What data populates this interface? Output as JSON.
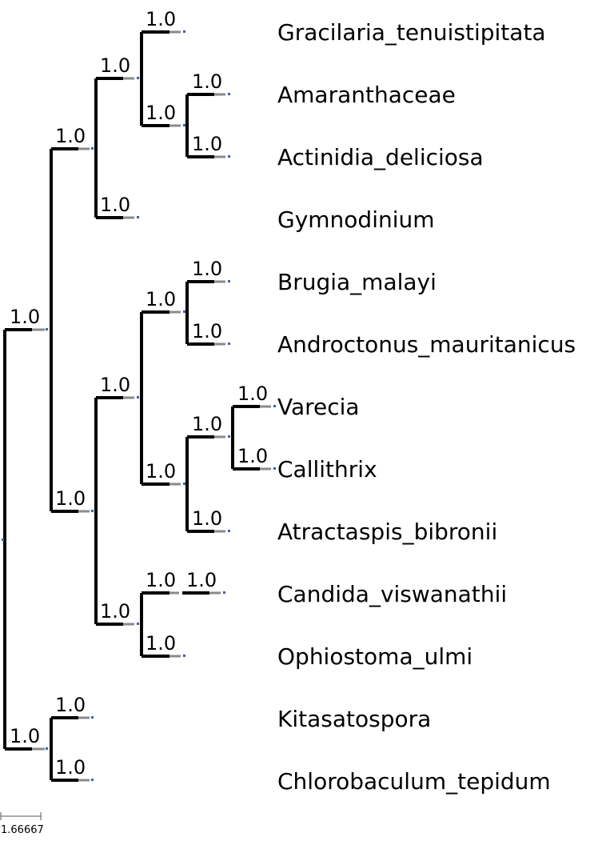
{
  "tree": {
    "leaves": [
      "Gracilaria_tenuistipitata",
      "Amaranthaceae",
      "Actinidia_deliciosa",
      "Gymnodinium",
      "Brugia_malayi",
      "Androctonus_mauritanicus",
      "Varecia",
      "Callithrix",
      "Atractaspis_bibronii",
      "Candida_viswanathii",
      "Ophiostoma_ulmi",
      "Kitasatospora",
      "Chlorobaculum_tepidum"
    ],
    "support_value": "1.0"
  },
  "scale_bar": {
    "label": "1.66667"
  },
  "colors": {
    "branch": "#000000",
    "stub": "#8a8a8a",
    "node_marker": "#3f5fa8"
  }
}
